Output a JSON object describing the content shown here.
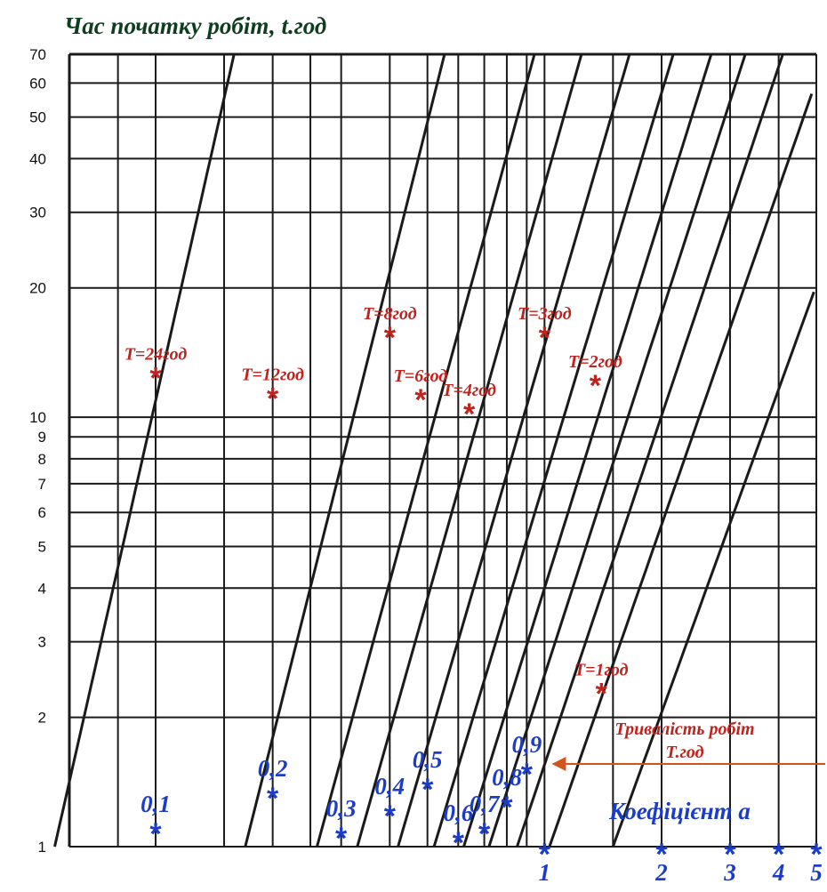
{
  "chart_data": {
    "type": "line",
    "title": "Час початку робіт, t.год",
    "ylabel": "Час початку робіт, t.год",
    "xlabel": "Коефіцієнт а",
    "y_scale": "log",
    "ylim": [
      1,
      70
    ],
    "y_ticks": [
      1,
      2,
      3,
      4,
      5,
      6,
      7,
      8,
      9,
      10,
      20,
      30,
      40,
      50,
      60,
      70
    ],
    "y_tick_labels": [
      "1",
      "2",
      "3",
      "4",
      "5",
      "6",
      "7",
      "8",
      "9",
      "10",
      "20",
      "30",
      "40",
      "50",
      "60",
      "70"
    ],
    "x_scale": "log",
    "xlim": [
      0.06,
      5
    ],
    "x_marks": [
      {
        "label": "0,1",
        "value": 0.1
      },
      {
        "label": "0,2",
        "value": 0.2
      },
      {
        "label": "0,3",
        "value": 0.3
      },
      {
        "label": "0,4",
        "value": 0.4
      },
      {
        "label": "0,5",
        "value": 0.5
      },
      {
        "label": "0,6",
        "value": 0.6
      },
      {
        "label": "0,7",
        "value": 0.7
      },
      {
        "label": "0,8",
        "value": 0.8
      },
      {
        "label": "0,9",
        "value": 0.9
      },
      {
        "label": "1",
        "value": 1
      },
      {
        "label": "2",
        "value": 2
      },
      {
        "label": "3",
        "value": 3
      },
      {
        "label": "4",
        "value": 4
      },
      {
        "label": "5",
        "value": 5
      }
    ],
    "series": [
      {
        "name": "T=24год",
        "points": [
          [
            0.1,
            12.5
          ]
        ]
      },
      {
        "name": "T=12год",
        "points": [
          [
            0.2,
            11.2
          ]
        ]
      },
      {
        "name": "T=8год",
        "points": [
          [
            0.4,
            15.5
          ]
        ]
      },
      {
        "name": "T=6год",
        "points": [
          [
            0.48,
            11.1
          ]
        ]
      },
      {
        "name": "T=4год",
        "points": [
          [
            0.64,
            10.3
          ]
        ]
      },
      {
        "name": "T=3год",
        "points": [
          [
            1.0,
            15.5
          ]
        ]
      },
      {
        "name": "T=2год",
        "points": [
          [
            1.35,
            12.0
          ]
        ]
      },
      {
        "name": "T=1год",
        "points": [
          [
            1.4,
            2.3
          ]
        ]
      }
    ],
    "annotation": {
      "text_line1": "Тривалість робіт",
      "text_line2": "Т.год"
    }
  },
  "colors": {
    "grid": "#1a1a1a",
    "title": "#0f3d1f",
    "t_label": "#c0231e",
    "a_label": "#1b3cc8",
    "arrow": "#d2531b"
  }
}
